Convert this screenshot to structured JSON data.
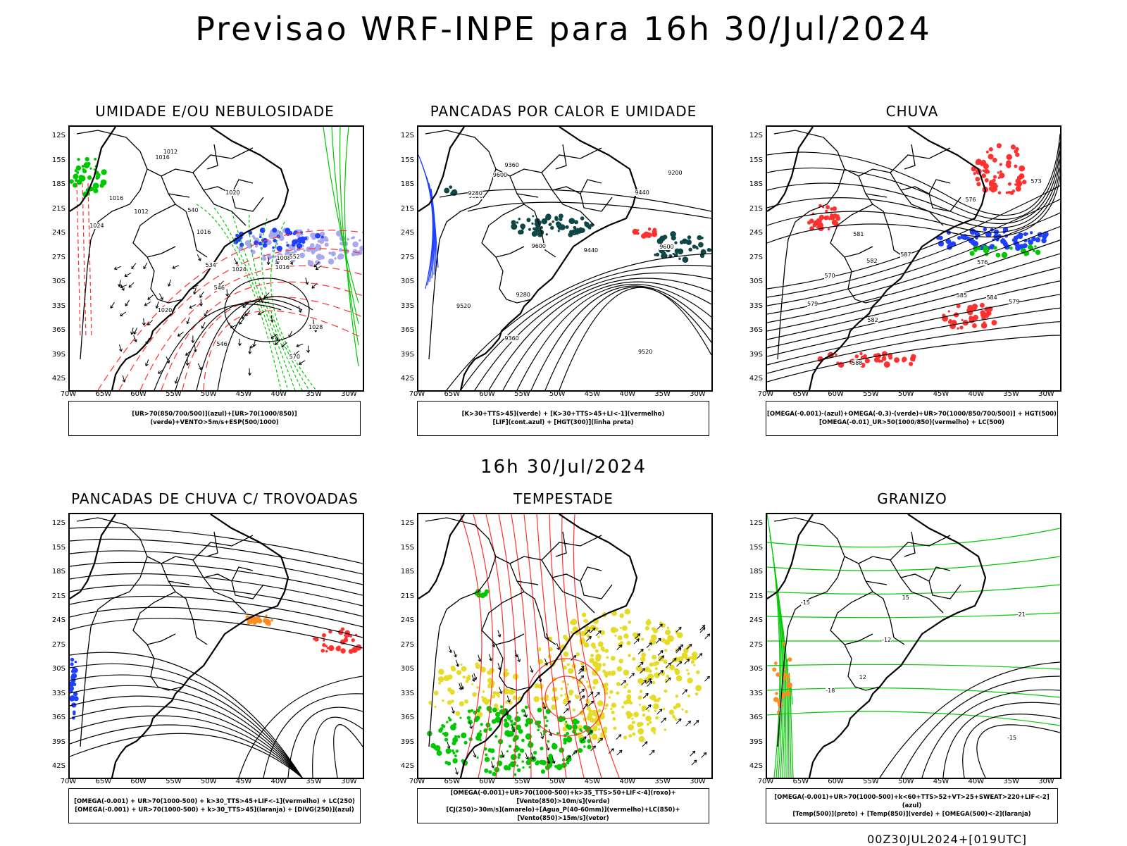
{
  "header": {
    "title": "Previsao WRF-INPE  para 16h 30/Jul/2024"
  },
  "middle": {
    "label": "16h 30/Jul/2024"
  },
  "footer": {
    "run": "00Z30JUL2024+[019UTC]"
  },
  "axes": {
    "lat_labels": [
      "12S",
      "15S",
      "18S",
      "21S",
      "24S",
      "27S",
      "30S",
      "33S",
      "36S",
      "39S",
      "42S"
    ],
    "lon_labels": [
      "70W",
      "65W",
      "60W",
      "55W",
      "50W",
      "45W",
      "40W",
      "35W",
      "30W"
    ]
  },
  "colors": {
    "blue": "#2040ff",
    "green": "#00c800",
    "red": "#ff3030",
    "yellow": "#e6dc28",
    "teal": "#0f4646",
    "orange": "#ff8c1e",
    "lavender": "#a8a8f0"
  },
  "panels": [
    {
      "title": "UMIDADE E/OU NEBULOSIDADE",
      "legend": [
        "[UR>70(850/700/500)](azul)+[UR>70(1000/850)](verde)+VENTO>5m/s+ESP(500/1000)"
      ],
      "labels": [
        "1012",
        "1016",
        "1016",
        "1016",
        "1020",
        "1020",
        "1024",
        "1024",
        "1028",
        "1016",
        "1012",
        "1008",
        "570",
        "552",
        "546",
        "546",
        "540",
        "534"
      ]
    },
    {
      "title": "PANCADAS POR CALOR E UMIDADE",
      "legend": [
        "[K>30+TTS>45](verde) + [K>30+TTS>45+LI<-1](vermelho)",
        "[LIF](cont.azul) + [HGT(300)](linha preta)"
      ],
      "labels": [
        "9600",
        "9600",
        "9600",
        "9520",
        "9520",
        "9520",
        "9440",
        "9360",
        "9280",
        "9200",
        "9440",
        "9360",
        "9280"
      ]
    },
    {
      "title": "CHUVA",
      "legend": [
        "[OMEGA(-0.001)-(azul)+OMEGA(-0.3)-(verde)+UR>70(1000/850/700/500)] + HGT(500)",
        "[OMEGA(-0.01)_UR>50(1000/850)(vermelho) + LC(500)"
      ],
      "labels": [
        "588",
        "585",
        "582",
        "582",
        "579",
        "576",
        "570",
        "573",
        "576",
        "579",
        "581",
        "584",
        "587"
      ]
    },
    {
      "title": "PANCADAS DE CHUVA C/ TROVOADAS",
      "legend": [
        "[OMEGA(-0.001) + UR>70(1000-500) + k>30_TTS>45+LIF<-1](vermelho) + LC(250)",
        "[OMEGA(-0.001) + UR>70(1000-500) + k>30_TTS>45](laranja) + [DIVG(250)](azul)"
      ],
      "labels": []
    },
    {
      "title": "TEMPESTADE",
      "legend": [
        "[OMEGA(-0.001)+UR>70(1000-500)+k>35_TTS>50+LIF<-4](roxo)+[Vento(850)>10m/s](verde)",
        "[CJ(250)>30m/s](amarelo)+[Agua_P(40-60mm)](vermelho)+LC(850)+[Vento(850)>15m/s](vetor)"
      ],
      "labels": []
    },
    {
      "title": "GRANIZO",
      "legend": [
        "[OMEGA(-0.001)+UR>70(1000-500)+k<60+TTS>52+VT>25+SWEAT>220+LIF<-2](azul)",
        "[Temp(500)](preto) + [Temp(850)](verde) + [OMEGA(500)<-2](laranja)"
      ],
      "labels": [
        "-12",
        "-15",
        "-18",
        "-21",
        "12",
        "15",
        "-15"
      ]
    }
  ]
}
